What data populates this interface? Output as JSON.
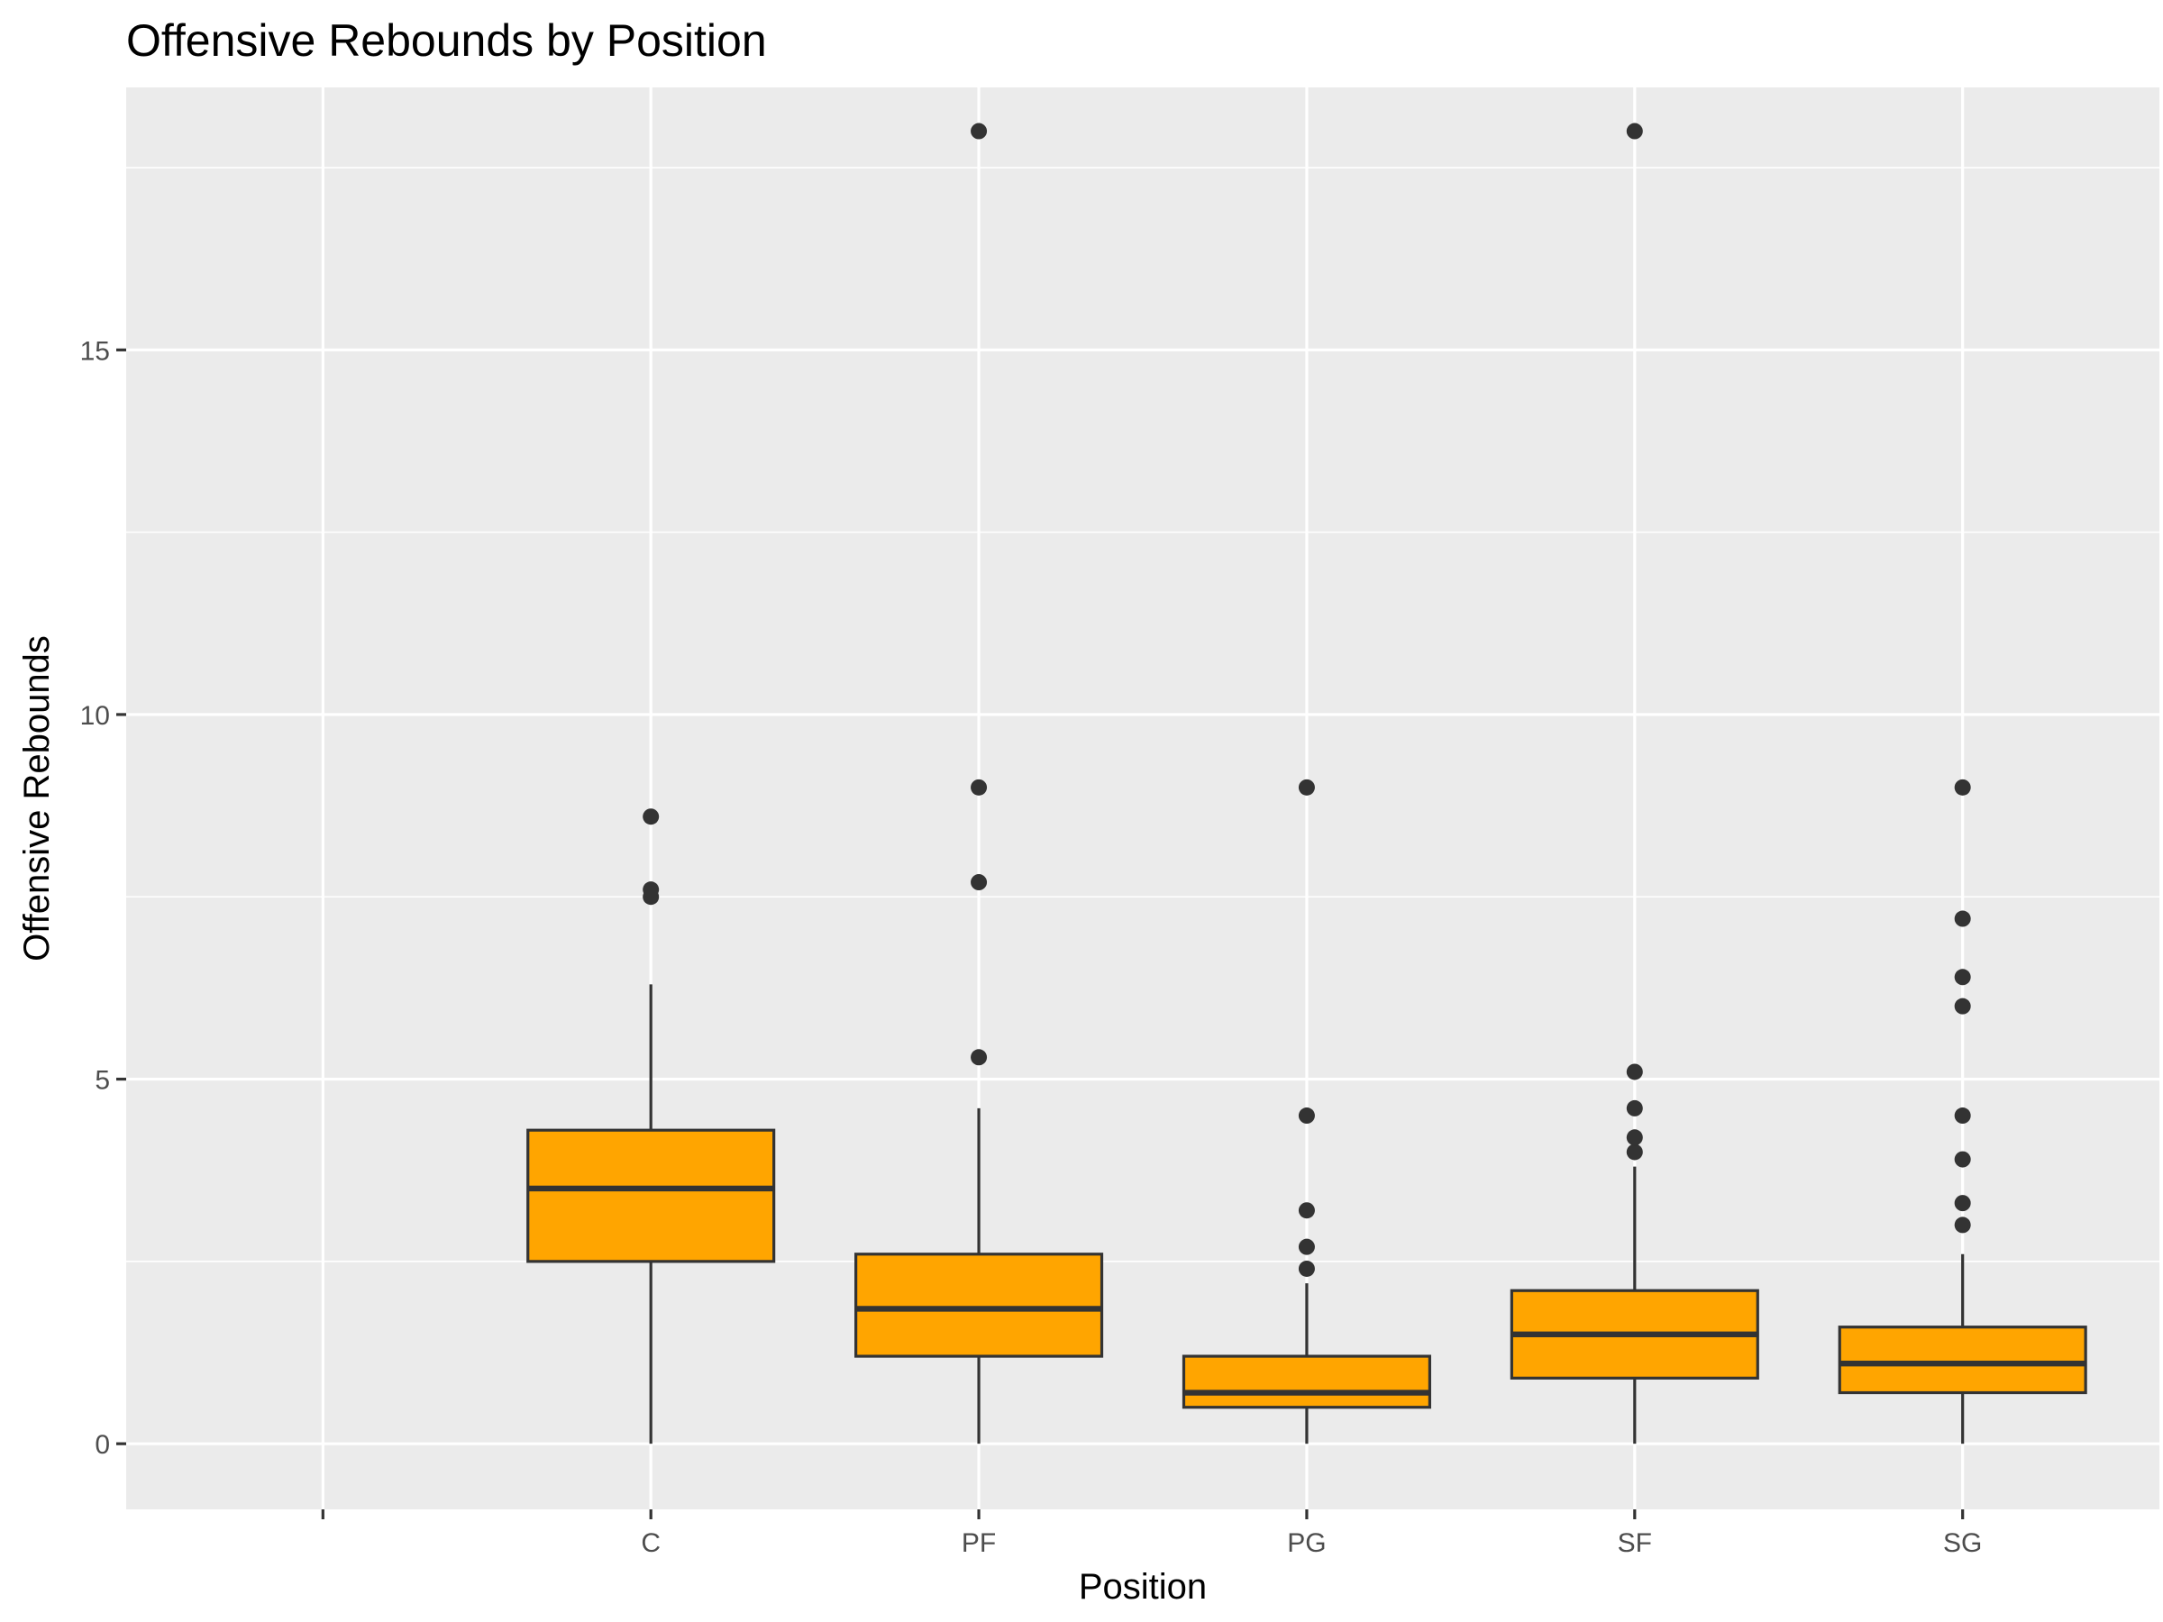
{
  "chart_data": {
    "type": "box",
    "title": "Offensive Rebounds by Position",
    "xlabel": "Position",
    "ylabel": "Offensive Rebounds",
    "categories": [
      "",
      "C",
      "PF",
      "PG",
      "SF",
      "SG"
    ],
    "ylim": [
      -0.9,
      18.6
    ],
    "yticks": [
      0,
      5,
      10,
      15
    ],
    "yticks_minor": [
      2.5,
      7.5,
      12.5,
      17.5
    ],
    "grid": true,
    "legend": "none",
    "box_fill": "#FFA500",
    "line_color": "#333333",
    "panel_bg": "#EBEBEB",
    "grid_color": "#FFFFFF",
    "boxes": [
      {
        "category": "C",
        "q1": 2.5,
        "median": 3.5,
        "q3": 4.3,
        "whisker_low": 0,
        "whisker_high": 6.3,
        "outliers": [
          7.5,
          7.6,
          8.6
        ]
      },
      {
        "category": "PF",
        "q1": 1.2,
        "median": 1.85,
        "q3": 2.6,
        "whisker_low": 0,
        "whisker_high": 4.6,
        "outliers": [
          5.3,
          7.7,
          9.0,
          18.0
        ]
      },
      {
        "category": "PG",
        "q1": 0.5,
        "median": 0.7,
        "q3": 1.2,
        "whisker_low": 0,
        "whisker_high": 2.2,
        "outliers": [
          2.4,
          2.7,
          3.2,
          4.5,
          9.0
        ]
      },
      {
        "category": "SF",
        "q1": 0.9,
        "median": 1.5,
        "q3": 2.1,
        "whisker_low": 0,
        "whisker_high": 3.8,
        "outliers": [
          4.0,
          4.2,
          4.6,
          5.1,
          18.0
        ]
      },
      {
        "category": "SG",
        "q1": 0.7,
        "median": 1.1,
        "q3": 1.6,
        "whisker_low": 0,
        "whisker_high": 2.6,
        "outliers": [
          3.0,
          3.3,
          3.9,
          4.5,
          6.0,
          6.4,
          7.2,
          9.0
        ]
      }
    ]
  }
}
